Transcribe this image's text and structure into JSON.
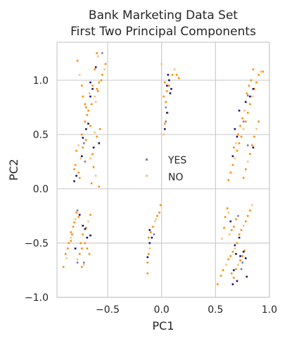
{
  "chart_data": {
    "type": "scatter",
    "title": [
      "Bank Marketing Data Set",
      "First Two Principal Components"
    ],
    "xlabel": "PC1",
    "ylabel": "PC2",
    "xlim": [
      -0.97,
      1.0
    ],
    "ylim": [
      -1.0,
      1.35
    ],
    "x_ticks": [
      -0.5,
      0.0,
      0.5,
      1.0
    ],
    "x_tick_labels": [
      "−0.5",
      "0.0",
      "0.5",
      "1.0"
    ],
    "y_ticks": [
      -1.0,
      -0.5,
      0.0,
      0.5,
      1.0
    ],
    "y_tick_labels": [
      "−1.0",
      "−0.5",
      "0.0",
      "0.5",
      "1.0"
    ],
    "grid": true,
    "legend_position": "center",
    "colors": {
      "YES": "#1a1070",
      "YES_light": "#7b7bb8",
      "NO": "#ff8c00",
      "NO_light": "#f5c27a"
    },
    "series": [
      {
        "name": "YES",
        "color": "#1a1070",
        "points": [
          [
            -0.66,
            0.98
          ],
          [
            -0.64,
            0.92
          ],
          [
            -0.66,
            0.85
          ],
          [
            -0.72,
            0.42
          ],
          [
            -0.68,
            0.6
          ],
          [
            -0.73,
            0.47
          ],
          [
            -0.61,
            1.12
          ],
          [
            -0.55,
            1.25
          ],
          [
            -0.7,
            0.55
          ],
          [
            -0.74,
            0.3
          ],
          [
            -0.81,
            0.07
          ],
          [
            -0.71,
            0.25
          ],
          [
            -0.63,
            0.38
          ],
          [
            -0.58,
            0.42
          ],
          [
            -0.79,
            0.12
          ],
          [
            -0.78,
            -0.2
          ],
          [
            -0.76,
            -0.24
          ],
          [
            -0.69,
            -0.45
          ],
          [
            -0.8,
            -0.55
          ],
          [
            -0.72,
            -0.68
          ],
          [
            -0.73,
            -0.34
          ],
          [
            -0.71,
            -0.37
          ],
          [
            -0.66,
            -0.43
          ],
          [
            -0.78,
            -0.68
          ],
          [
            0.05,
            0.95
          ],
          [
            0.06,
            1.05
          ],
          [
            0.08,
            0.88
          ],
          [
            0.04,
            0.75
          ],
          [
            0.05,
            0.7
          ],
          [
            0.07,
            1.0
          ],
          [
            0.09,
            0.92
          ],
          [
            0.04,
            0.62
          ],
          [
            0.03,
            0.55
          ],
          [
            -0.11,
            -0.5
          ],
          [
            -0.09,
            -0.45
          ],
          [
            -0.07,
            -0.42
          ],
          [
            -0.11,
            -0.38
          ],
          [
            -0.13,
            -0.63
          ],
          [
            0.78,
            0.8
          ],
          [
            0.8,
            0.86
          ],
          [
            0.82,
            0.85
          ],
          [
            0.85,
            0.92
          ],
          [
            0.72,
            0.72
          ],
          [
            0.76,
            0.62
          ],
          [
            0.7,
            0.48
          ],
          [
            0.68,
            0.55
          ],
          [
            0.66,
            0.3
          ],
          [
            0.8,
            0.4
          ],
          [
            0.85,
            0.38
          ],
          [
            0.72,
            -0.45
          ],
          [
            0.68,
            -0.52
          ],
          [
            0.71,
            -0.25
          ],
          [
            0.64,
            -0.3
          ],
          [
            0.67,
            -0.75
          ],
          [
            0.66,
            -0.88
          ],
          [
            0.75,
            -0.68
          ],
          [
            0.76,
            -0.58
          ],
          [
            0.7,
            -0.85
          ],
          [
            0.69,
            -0.6
          ],
          [
            0.74,
            -0.74
          ],
          [
            0.79,
            -0.81
          ],
          [
            0.78,
            -0.64
          ],
          [
            0.73,
            -0.62
          ]
        ]
      },
      {
        "name": "NO",
        "color": "#ff8c00",
        "points": [
          [
            -0.6,
            1.25
          ],
          [
            -0.62,
            1.1
          ],
          [
            -0.64,
            0.95
          ],
          [
            -0.67,
            0.88
          ],
          [
            -0.7,
            0.75
          ],
          [
            -0.71,
            0.62
          ],
          [
            -0.74,
            0.5
          ],
          [
            -0.77,
            0.4
          ],
          [
            -0.79,
            0.35
          ],
          [
            -0.8,
            0.22
          ],
          [
            -0.81,
            0.18
          ],
          [
            -0.75,
            0.28
          ],
          [
            -0.65,
            0.78
          ],
          [
            -0.68,
            0.72
          ],
          [
            -0.69,
            0.68
          ],
          [
            -0.62,
            0.85
          ],
          [
            -0.6,
            0.92
          ],
          [
            -0.58,
            0.98
          ],
          [
            -0.55,
            1.05
          ],
          [
            -0.53,
            1.1
          ],
          [
            -0.52,
            1.15
          ],
          [
            -0.56,
            1.0
          ],
          [
            -0.59,
            0.9
          ],
          [
            -0.61,
            0.8
          ],
          [
            -0.66,
            0.58
          ],
          [
            -0.7,
            0.45
          ],
          [
            -0.73,
            0.38
          ],
          [
            -0.62,
            0.52
          ],
          [
            -0.6,
            0.48
          ],
          [
            -0.57,
            0.55
          ],
          [
            -0.64,
            0.32
          ],
          [
            -0.66,
            0.28
          ],
          [
            -0.63,
            0.2
          ],
          [
            -0.65,
            0.05
          ],
          [
            -0.78,
            1.18
          ],
          [
            -0.76,
            1.05
          ],
          [
            -0.74,
            0.95
          ],
          [
            -0.73,
            0.85
          ],
          [
            -0.71,
            0.78
          ],
          [
            -0.59,
            1.22
          ],
          [
            -0.76,
            0.1
          ],
          [
            -0.77,
            0.15
          ],
          [
            -0.58,
            0.02
          ],
          [
            -0.61,
            0.12
          ],
          [
            -0.86,
            -0.5
          ],
          [
            -0.84,
            -0.4
          ],
          [
            -0.82,
            -0.35
          ],
          [
            -0.8,
            -0.28
          ],
          [
            -0.79,
            -0.22
          ],
          [
            -0.77,
            -0.26
          ],
          [
            -0.81,
            -0.31
          ],
          [
            -0.84,
            -0.45
          ],
          [
            -0.87,
            -0.55
          ],
          [
            -0.89,
            -0.6
          ],
          [
            -0.91,
            -0.72
          ],
          [
            -0.88,
            -0.64
          ],
          [
            -0.75,
            -0.5
          ],
          [
            -0.73,
            -0.42
          ],
          [
            -0.7,
            -0.36
          ],
          [
            -0.68,
            -0.3
          ],
          [
            -0.66,
            -0.24
          ],
          [
            -0.74,
            -0.55
          ],
          [
            -0.76,
            -0.6
          ],
          [
            -0.78,
            -0.65
          ],
          [
            -0.71,
            -0.5
          ],
          [
            -0.69,
            -0.55
          ],
          [
            -0.67,
            -0.6
          ],
          [
            -0.72,
            -0.7
          ],
          [
            -0.74,
            -0.72
          ],
          [
            -0.84,
            -0.48
          ],
          [
            -0.83,
            -0.42
          ],
          [
            0.0,
            1.15
          ],
          [
            0.03,
            0.98
          ],
          [
            0.02,
            0.85
          ],
          [
            0.04,
            0.8
          ],
          [
            0.06,
            0.7
          ],
          [
            0.05,
            0.9
          ],
          [
            0.07,
            0.95
          ],
          [
            0.1,
            1.05
          ],
          [
            0.12,
            1.1
          ],
          [
            0.14,
            1.05
          ],
          [
            0.16,
            1.02
          ],
          [
            0.03,
            0.6
          ],
          [
            0.02,
            0.5
          ],
          [
            -0.01,
            -0.15
          ],
          [
            -0.02,
            -0.22
          ],
          [
            -0.04,
            -0.25
          ],
          [
            -0.06,
            -0.3
          ],
          [
            -0.08,
            -0.35
          ],
          [
            -0.1,
            -0.4
          ],
          [
            -0.12,
            -0.45
          ],
          [
            -0.11,
            -0.55
          ],
          [
            -0.12,
            -0.6
          ],
          [
            -0.13,
            -0.68
          ],
          [
            -0.13,
            -0.78
          ],
          [
            -0.05,
            -0.28
          ],
          [
            0.52,
            -0.88
          ],
          [
            0.55,
            -0.8
          ],
          [
            0.57,
            -0.75
          ],
          [
            0.6,
            -0.7
          ],
          [
            0.62,
            -0.65
          ],
          [
            0.64,
            -0.62
          ],
          [
            0.66,
            -0.58
          ],
          [
            0.68,
            -0.55
          ],
          [
            0.7,
            -0.5
          ],
          [
            0.72,
            -0.42
          ],
          [
            0.74,
            -0.38
          ],
          [
            0.76,
            -0.34
          ],
          [
            0.78,
            -0.3
          ],
          [
            0.8,
            -0.25
          ],
          [
            0.82,
            -0.2
          ],
          [
            0.84,
            -0.15
          ],
          [
            0.65,
            -0.78
          ],
          [
            0.67,
            -0.82
          ],
          [
            0.69,
            -0.74
          ],
          [
            0.71,
            -0.7
          ],
          [
            0.73,
            -0.66
          ],
          [
            0.75,
            -0.62
          ],
          [
            0.77,
            -0.57
          ],
          [
            0.63,
            -0.42
          ],
          [
            0.65,
            -0.38
          ],
          [
            0.67,
            -0.35
          ],
          [
            0.69,
            -0.28
          ],
          [
            0.62,
            -0.22
          ],
          [
            0.61,
            -0.18
          ],
          [
            0.59,
            -0.26
          ],
          [
            0.58,
            -0.36
          ],
          [
            0.56,
            -0.46
          ],
          [
            0.62,
            0.08
          ],
          [
            0.64,
            0.15
          ],
          [
            0.66,
            0.22
          ],
          [
            0.68,
            0.28
          ],
          [
            0.7,
            0.35
          ],
          [
            0.72,
            0.42
          ],
          [
            0.74,
            0.48
          ],
          [
            0.76,
            0.55
          ],
          [
            0.78,
            0.62
          ],
          [
            0.8,
            0.7
          ],
          [
            0.82,
            0.78
          ],
          [
            0.84,
            0.85
          ],
          [
            0.86,
            0.92
          ],
          [
            0.88,
            0.98
          ],
          [
            0.9,
            1.05
          ],
          [
            0.92,
            1.08
          ],
          [
            0.94,
            1.08
          ],
          [
            0.76,
            0.1
          ],
          [
            0.78,
            0.18
          ],
          [
            0.8,
            0.25
          ],
          [
            0.82,
            0.32
          ],
          [
            0.84,
            0.4
          ],
          [
            0.86,
            0.48
          ],
          [
            0.88,
            0.55
          ],
          [
            0.9,
            0.62
          ],
          [
            0.79,
            0.88
          ],
          [
            0.81,
            0.95
          ],
          [
            0.77,
            0.72
          ],
          [
            0.75,
            0.65
          ],
          [
            0.73,
            0.58
          ],
          [
            0.71,
            0.5
          ],
          [
            0.69,
            0.42
          ],
          [
            0.67,
            0.38
          ],
          [
            0.85,
            1.1
          ],
          [
            0.83,
            1.0
          ]
        ]
      }
    ]
  }
}
